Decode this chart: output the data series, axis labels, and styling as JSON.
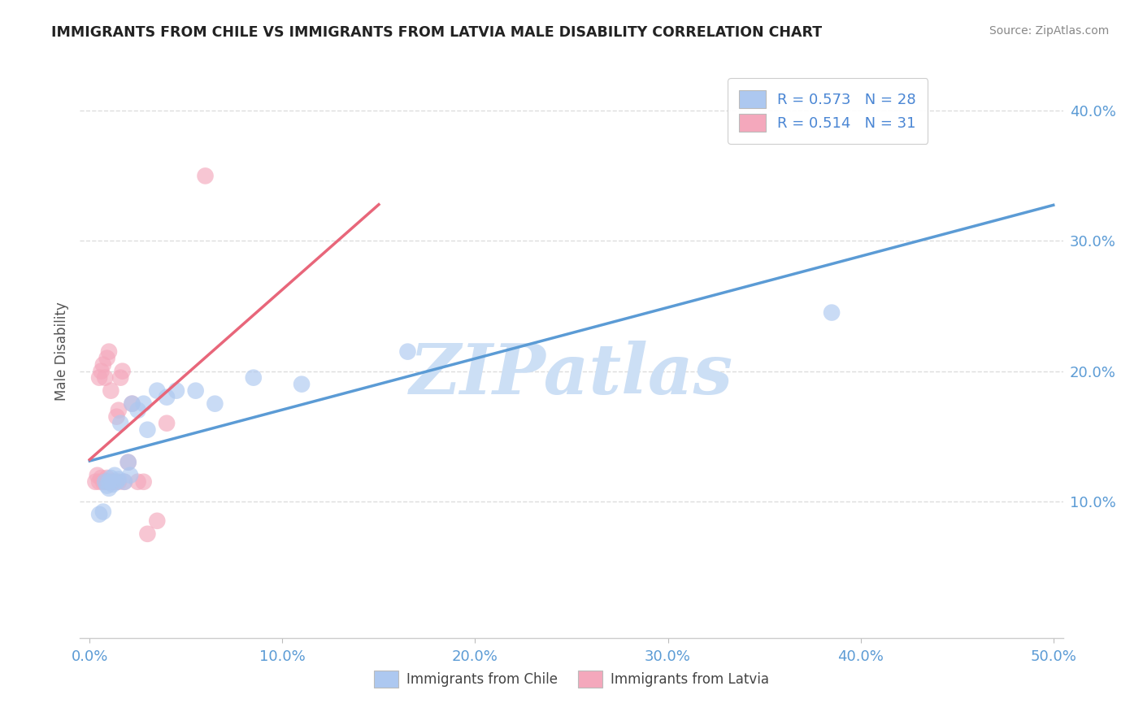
{
  "title": "IMMIGRANTS FROM CHILE VS IMMIGRANTS FROM LATVIA MALE DISABILITY CORRELATION CHART",
  "source": "Source: ZipAtlas.com",
  "xlabel_chile": "Immigrants from Chile",
  "xlabel_latvia": "Immigrants from Latvia",
  "ylabel": "Male Disability",
  "xlim": [
    -0.005,
    0.505
  ],
  "ylim": [
    -0.005,
    0.435
  ],
  "xticks": [
    0.0,
    0.1,
    0.2,
    0.3,
    0.4,
    0.5
  ],
  "yticks": [
    0.1,
    0.2,
    0.3,
    0.4
  ],
  "ytick_labels": [
    "10.0%",
    "20.0%",
    "30.0%",
    "40.0%"
  ],
  "xtick_labels": [
    "0.0%",
    "10.0%",
    "20.0%",
    "30.0%",
    "40.0%",
    "50.0%"
  ],
  "chile_color": "#adc8f0",
  "latvia_color": "#f4a8bc",
  "chile_line_color": "#5b9bd5",
  "latvia_line_color": "#e8667a",
  "r_chile": 0.573,
  "n_chile": 28,
  "r_latvia": 0.514,
  "n_latvia": 31,
  "chile_scatter_x": [
    0.005,
    0.007,
    0.008,
    0.009,
    0.01,
    0.01,
    0.011,
    0.012,
    0.013,
    0.014,
    0.015,
    0.016,
    0.018,
    0.02,
    0.021,
    0.022,
    0.025,
    0.028,
    0.03,
    0.035,
    0.04,
    0.045,
    0.055,
    0.065,
    0.085,
    0.11,
    0.165,
    0.385
  ],
  "chile_scatter_y": [
    0.09,
    0.092,
    0.115,
    0.112,
    0.11,
    0.115,
    0.118,
    0.113,
    0.12,
    0.115,
    0.117,
    0.16,
    0.115,
    0.13,
    0.12,
    0.175,
    0.17,
    0.175,
    0.155,
    0.185,
    0.18,
    0.185,
    0.185,
    0.175,
    0.195,
    0.19,
    0.215,
    0.245
  ],
  "latvia_scatter_x": [
    0.003,
    0.004,
    0.005,
    0.005,
    0.006,
    0.006,
    0.007,
    0.007,
    0.008,
    0.008,
    0.009,
    0.009,
    0.01,
    0.01,
    0.011,
    0.012,
    0.013,
    0.014,
    0.015,
    0.015,
    0.016,
    0.017,
    0.018,
    0.02,
    0.022,
    0.025,
    0.028,
    0.03,
    0.035,
    0.04,
    0.06
  ],
  "latvia_scatter_y": [
    0.115,
    0.12,
    0.115,
    0.195,
    0.118,
    0.2,
    0.115,
    0.205,
    0.115,
    0.195,
    0.118,
    0.21,
    0.115,
    0.215,
    0.185,
    0.115,
    0.115,
    0.165,
    0.17,
    0.115,
    0.195,
    0.2,
    0.115,
    0.13,
    0.175,
    0.115,
    0.115,
    0.075,
    0.085,
    0.16,
    0.35
  ],
  "watermark": "ZIPatlas",
  "watermark_color": "#ccdff5",
  "background_color": "#ffffff",
  "grid_color": "#dddddd",
  "title_color": "#222222",
  "source_color": "#888888",
  "ylabel_color": "#555555",
  "tick_color": "#5b9bd5"
}
